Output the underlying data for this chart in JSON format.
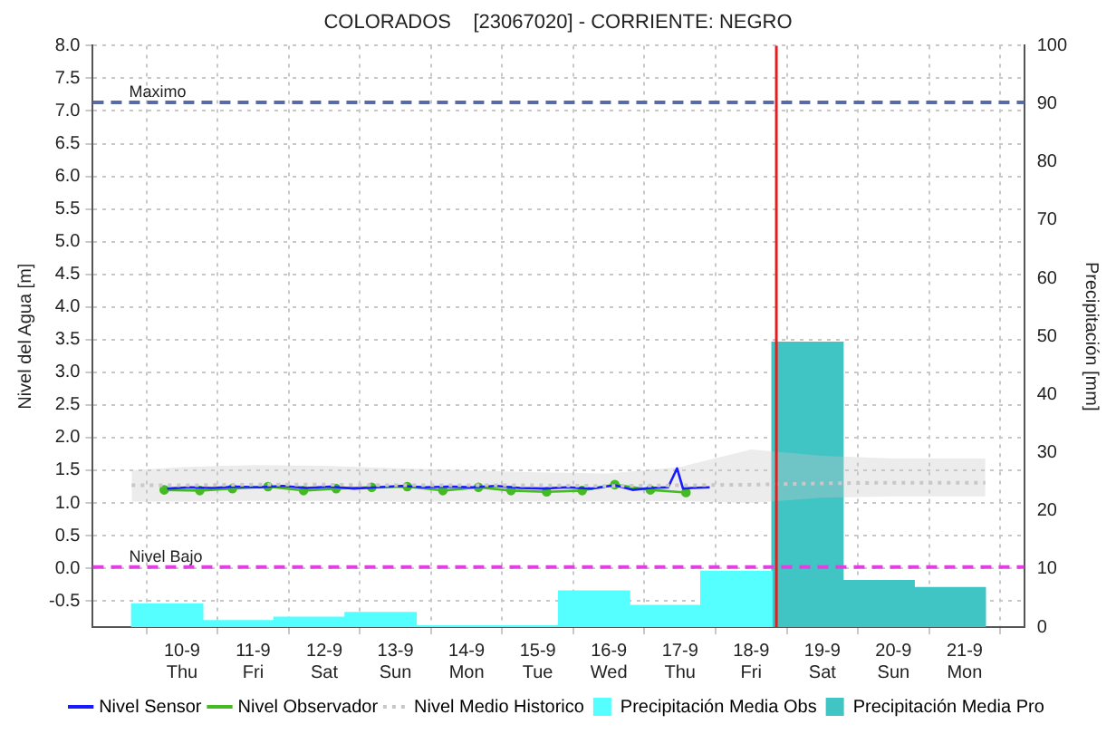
{
  "chart_data": {
    "type": "line",
    "title": "COLORADOS    [23067020] - CORRIENTE: NEGRO",
    "ylabel": "Nivel del Agua [m]",
    "y2label": "Precipitación [mm]",
    "xlim": [
      "--09-09T07:00",
      "--09-21T07:00"
    ],
    "xticks": [
      {
        "value": "--09-10T00:00",
        "label": "10-9\nThu"
      },
      {
        "value": "--09-11T00:00",
        "label": "11-9\nFri"
      },
      {
        "value": "--09-12T00:00",
        "label": "12-9\nSat"
      },
      {
        "value": "--09-13T00:00",
        "label": "13-9\nSun"
      },
      {
        "value": "--09-14T00:00",
        "label": "14-9\nMon"
      },
      {
        "value": "--09-15T00:00",
        "label": "15-9\nTue"
      },
      {
        "value": "--09-16T00:00",
        "label": "16-9\nWed"
      },
      {
        "value": "--09-17T00:00",
        "label": "17-9\nThu"
      },
      {
        "value": "--09-18T00:00",
        "label": "18-9\nFri"
      },
      {
        "value": "--09-19T00:00",
        "label": "19-9\nSat"
      },
      {
        "value": "--09-20T00:00",
        "label": "20-9\nSun"
      },
      {
        "value": "--09-21T00:00",
        "label": "21-9\nMon"
      }
    ],
    "ylim": [
      -0.9,
      8
    ],
    "yticks": [
      {
        "value": -0.5,
        "label": "-0.5"
      },
      {
        "value": 0,
        "label": "0.0"
      },
      {
        "value": 0.5,
        "label": "0.5"
      },
      {
        "value": 1,
        "label": "1.0"
      },
      {
        "value": 1.5,
        "label": "1.5"
      },
      {
        "value": 2,
        "label": "2.0"
      },
      {
        "value": 2.5,
        "label": "2.5"
      },
      {
        "value": 3,
        "label": "3.0"
      },
      {
        "value": 3.5,
        "label": "3.5"
      },
      {
        "value": 4,
        "label": "4.0"
      },
      {
        "value": 4.5,
        "label": "4.5"
      },
      {
        "value": 5,
        "label": "5.0"
      },
      {
        "value": 5.5,
        "label": "5.5"
      },
      {
        "value": 6,
        "label": "6.0"
      },
      {
        "value": 6.5,
        "label": "6.5"
      },
      {
        "value": 7,
        "label": "7.0"
      },
      {
        "value": 7.5,
        "label": "7.5"
      },
      {
        "value": 8,
        "label": "8.0"
      }
    ],
    "y2lim": [
      0,
      100
    ],
    "y2ticks": [
      0,
      10,
      20,
      30,
      40,
      50,
      60,
      70,
      80,
      90,
      100
    ],
    "grid": true,
    "legend": "bottom",
    "series": [
      {
        "name": "Precipitación Media Obs",
        "type": "bar",
        "axis": "y2",
        "color": "#55ffff",
        "x": [
          "--09-09T19:00",
          "--09-10T19:00",
          "--09-11T19:00",
          "--09-12T19:00",
          "--09-13T19:00",
          "--09-14T19:00",
          "--09-15T19:00",
          "--09-16T19:00",
          "--09-17T19:00"
        ],
        "values": [
          4.0,
          1.1,
          1.7,
          2.5,
          0.2,
          0.2,
          6.2,
          3.7,
          9.6
        ]
      },
      {
        "name": "Precipitación Media Pro",
        "type": "bar",
        "axis": "y2",
        "color": "#40c4c4",
        "x": [
          "--09-18T19:00",
          "--09-19T19:00",
          "--09-20T19:00"
        ],
        "values": [
          49,
          8.0,
          6.8
        ]
      },
      {
        "name": "Nivel Medio Historico",
        "color": "#c8c8c8",
        "line_style": "dotted",
        "marker": "none",
        "x": [
          "--09-09T07:00",
          "--09-10T00:00",
          "--09-11T00:00",
          "--09-12T00:00",
          "--09-13T00:00",
          "--09-14T00:00",
          "--09-15T00:00",
          "--09-16T00:00",
          "--09-17T00:00",
          "--09-18T00:00",
          "--09-19T00:00",
          "--09-20T00:00",
          "--09-21T00:00",
          "--09-21T07:00"
        ],
        "values": [
          1.27,
          1.27,
          1.28,
          1.28,
          1.27,
          1.27,
          1.27,
          1.26,
          1.27,
          1.28,
          1.3,
          1.31,
          1.31,
          1.31
        ],
        "lower": [
          1.02,
          1.02,
          1.03,
          1.03,
          1.02,
          1.02,
          1.02,
          1.02,
          1.03,
          1.0,
          1.08,
          1.1,
          1.1,
          1.1
        ],
        "upper": [
          1.5,
          1.55,
          1.58,
          1.57,
          1.53,
          1.5,
          1.47,
          1.45,
          1.55,
          1.82,
          1.72,
          1.68,
          1.68,
          1.68
        ]
      },
      {
        "name": "Nivel Sensor",
        "color": "#1a1aff",
        "line_style": "solid",
        "marker": "none",
        "x": [
          "--09-09T19:00",
          "--09-10T03:00",
          "--09-10T10:00",
          "--09-10T18:00",
          "--09-11T02:00",
          "--09-11T10:00",
          "--09-11T18:00",
          "--09-12T02:00",
          "--09-12T10:00",
          "--09-12T18:00",
          "--09-13T02:00",
          "--09-13T10:00",
          "--09-13T18:00",
          "--09-14T02:00",
          "--09-14T10:00",
          "--09-14T18:00",
          "--09-15T02:00",
          "--09-15T10:00",
          "--09-15T18:00",
          "--09-16T02:00",
          "--09-16T08:00",
          "--09-16T14:00",
          "--09-16T20:00",
          "--09-16T23:00",
          "--09-17T01:00",
          "--09-17T04:00",
          "--09-17T10:00"
        ],
        "values": [
          1.22,
          1.24,
          1.23,
          1.25,
          1.24,
          1.26,
          1.23,
          1.25,
          1.22,
          1.24,
          1.26,
          1.24,
          1.25,
          1.24,
          1.26,
          1.23,
          1.22,
          1.24,
          1.22,
          1.27,
          1.2,
          1.23,
          1.24,
          1.53,
          1.22,
          1.23,
          1.24
        ]
      },
      {
        "name": "Nivel Observador",
        "color": "#44bb22",
        "line_style": "solid",
        "marker": "circle",
        "x": [
          "--09-09T18:00",
          "--09-10T06:00",
          "--09-10T17:00",
          "--09-11T05:00",
          "--09-11T17:00",
          "--09-12T04:00",
          "--09-12T16:00",
          "--09-13T04:00",
          "--09-13T16:00",
          "--09-14T04:00",
          "--09-14T15:00",
          "--09-15T03:00",
          "--09-15T15:00",
          "--09-16T02:00",
          "--09-16T14:00",
          "--09-17T02:00"
        ],
        "values": [
          1.2,
          1.19,
          1.22,
          1.25,
          1.19,
          1.22,
          1.24,
          1.25,
          1.19,
          1.24,
          1.19,
          1.17,
          1.19,
          1.28,
          1.2,
          1.16
        ]
      }
    ],
    "ref_lines": [
      {
        "axis": "y",
        "value": 7.13,
        "label": "Maximo",
        "color": "#5a6aa8",
        "line_style": "dashed"
      },
      {
        "axis": "y",
        "value": 0.02,
        "label": "Nivel Bajo",
        "color": "#e040e0",
        "line_style": "dashed"
      },
      {
        "axis": "x",
        "value": "--09-18T08:30",
        "color": "#e02020",
        "line_style": "solid"
      }
    ]
  }
}
